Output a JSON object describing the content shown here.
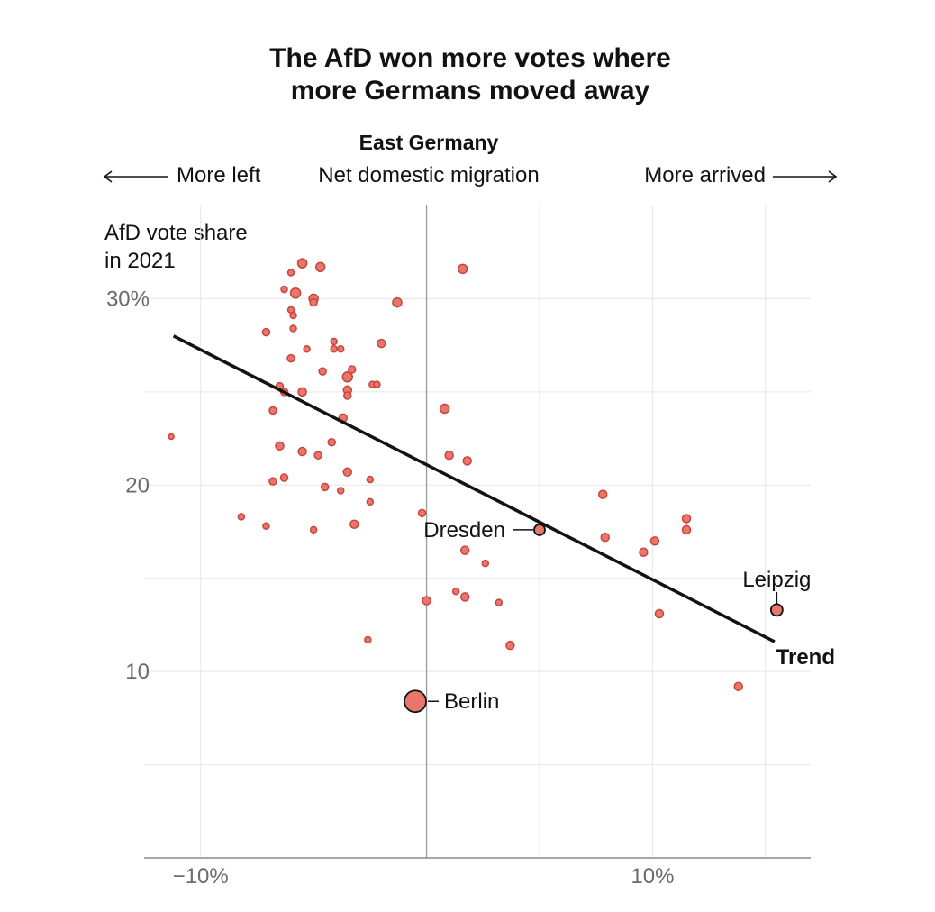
{
  "chart_data": {
    "type": "scatter",
    "title_line1": "The AfD won more votes where",
    "title_line2": "more Germans moved away",
    "subtitle": "East Germany",
    "xlabel": "Net domestic migration",
    "x_left_label": "More left",
    "x_right_label": "More arrived",
    "ylabel_line1": "AfD vote share",
    "ylabel_line2": "in 2021",
    "xlim": [
      -12.5,
      17
    ],
    "ylim": [
      0,
      35
    ],
    "x_ticks": [
      -10,
      0,
      5,
      10,
      15
    ],
    "x_tick_labels": [
      {
        "v": -10,
        "label": "−10%"
      },
      {
        "v": 10,
        "label": "10%"
      }
    ],
    "y_ticks": [
      5,
      10,
      15,
      20,
      25,
      30
    ],
    "y_tick_labels": [
      {
        "v": 10,
        "label": "10"
      },
      {
        "v": 20,
        "label": "20"
      },
      {
        "v": 30,
        "label": "30%"
      }
    ],
    "grid": true,
    "trend": {
      "label": "Trend",
      "x1": -11.2,
      "y1": 28.0,
      "x2": 15.4,
      "y2": 11.6
    },
    "annotations": [
      {
        "label": "Dresden",
        "x": 5.0,
        "y": 17.6
      },
      {
        "label": "Leipzig",
        "x": 15.5,
        "y": 13.3
      },
      {
        "label": "Berlin",
        "x": -0.5,
        "y": 8.4
      }
    ],
    "points": [
      {
        "x": -5.5,
        "y": 31.9,
        "s": 5
      },
      {
        "x": 1.6,
        "y": 31.6,
        "s": 5
      },
      {
        "x": -4.7,
        "y": 31.7,
        "s": 5
      },
      {
        "x": -6.0,
        "y": 31.4,
        "s": 3.5
      },
      {
        "x": -5.8,
        "y": 30.3,
        "s": 5.5
      },
      {
        "x": -6.3,
        "y": 30.5,
        "s": 3.5
      },
      {
        "x": -5.0,
        "y": 30.0,
        "s": 5
      },
      {
        "x": -5.0,
        "y": 29.8,
        "s": 4
      },
      {
        "x": -1.3,
        "y": 29.8,
        "s": 5
      },
      {
        "x": -6.0,
        "y": 29.4,
        "s": 3.5
      },
      {
        "x": -5.9,
        "y": 29.1,
        "s": 3.5
      },
      {
        "x": -5.9,
        "y": 28.4,
        "s": 3.5
      },
      {
        "x": -7.1,
        "y": 28.2,
        "s": 4
      },
      {
        "x": -4.1,
        "y": 27.7,
        "s": 3.5
      },
      {
        "x": -2.0,
        "y": 27.6,
        "s": 4.5
      },
      {
        "x": -5.3,
        "y": 27.3,
        "s": 3.5
      },
      {
        "x": -4.1,
        "y": 27.3,
        "s": 3.5
      },
      {
        "x": -3.8,
        "y": 27.3,
        "s": 3.5
      },
      {
        "x": -6.0,
        "y": 26.8,
        "s": 4
      },
      {
        "x": -3.3,
        "y": 26.2,
        "s": 4
      },
      {
        "x": -4.6,
        "y": 26.1,
        "s": 4
      },
      {
        "x": -3.5,
        "y": 25.8,
        "s": 5.5
      },
      {
        "x": -2.4,
        "y": 25.4,
        "s": 3.5
      },
      {
        "x": -2.2,
        "y": 25.4,
        "s": 3.5
      },
      {
        "x": -6.5,
        "y": 25.3,
        "s": 4
      },
      {
        "x": -3.5,
        "y": 25.1,
        "s": 4.5
      },
      {
        "x": -6.3,
        "y": 25.0,
        "s": 4
      },
      {
        "x": -5.5,
        "y": 25.0,
        "s": 4.5
      },
      {
        "x": -3.5,
        "y": 24.8,
        "s": 4
      },
      {
        "x": 0.8,
        "y": 24.1,
        "s": 5
      },
      {
        "x": -6.8,
        "y": 24.0,
        "s": 4
      },
      {
        "x": -3.7,
        "y": 23.6,
        "s": 4.5
      },
      {
        "x": -11.3,
        "y": 22.6,
        "s": 3
      },
      {
        "x": -4.2,
        "y": 22.3,
        "s": 4
      },
      {
        "x": -6.5,
        "y": 22.1,
        "s": 4.5
      },
      {
        "x": -5.5,
        "y": 21.8,
        "s": 4.5
      },
      {
        "x": -4.8,
        "y": 21.6,
        "s": 4
      },
      {
        "x": 1.0,
        "y": 21.6,
        "s": 4.5
      },
      {
        "x": 1.8,
        "y": 21.3,
        "s": 4.5
      },
      {
        "x": -3.5,
        "y": 20.7,
        "s": 4.5
      },
      {
        "x": -6.3,
        "y": 20.4,
        "s": 4
      },
      {
        "x": -2.5,
        "y": 20.3,
        "s": 3.5
      },
      {
        "x": -6.8,
        "y": 20.2,
        "s": 4
      },
      {
        "x": -4.5,
        "y": 19.9,
        "s": 4
      },
      {
        "x": -3.8,
        "y": 19.7,
        "s": 3.5
      },
      {
        "x": 7.8,
        "y": 19.5,
        "s": 4.5
      },
      {
        "x": -2.5,
        "y": 19.1,
        "s": 3.5
      },
      {
        "x": -0.2,
        "y": 18.5,
        "s": 4
      },
      {
        "x": -8.2,
        "y": 18.3,
        "s": 3.5
      },
      {
        "x": 11.5,
        "y": 18.2,
        "s": 4.5
      },
      {
        "x": -3.2,
        "y": 17.9,
        "s": 4.5
      },
      {
        "x": -7.1,
        "y": 17.8,
        "s": 3.5
      },
      {
        "x": 11.5,
        "y": 17.6,
        "s": 4.5
      },
      {
        "x": -5.0,
        "y": 17.6,
        "s": 3.5
      },
      {
        "x": 7.9,
        "y": 17.2,
        "s": 4.5
      },
      {
        "x": 10.1,
        "y": 17.0,
        "s": 4.5
      },
      {
        "x": 1.7,
        "y": 16.5,
        "s": 4.5
      },
      {
        "x": 9.6,
        "y": 16.4,
        "s": 4.5
      },
      {
        "x": 2.6,
        "y": 15.8,
        "s": 3.5
      },
      {
        "x": 1.3,
        "y": 14.3,
        "s": 3.5
      },
      {
        "x": 1.7,
        "y": 14.0,
        "s": 4.5
      },
      {
        "x": 0.0,
        "y": 13.8,
        "s": 4.5
      },
      {
        "x": 3.2,
        "y": 13.7,
        "s": 3.5
      },
      {
        "x": 10.3,
        "y": 13.1,
        "s": 4.5
      },
      {
        "x": 3.7,
        "y": 11.4,
        "s": 4.5
      },
      {
        "x": -2.6,
        "y": 11.7,
        "s": 3.5
      },
      {
        "x": 13.8,
        "y": 9.2,
        "s": 4.5
      }
    ]
  }
}
